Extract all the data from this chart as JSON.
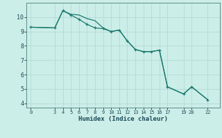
{
  "xlabel": "Humidex (Indice chaleur)",
  "background_color": "#cceee8",
  "grid_color": "#b8ddd8",
  "line_color": "#1a7a6e",
  "line1_x": [
    0,
    3,
    4,
    5,
    6,
    7,
    8,
    9,
    10,
    11,
    12,
    13,
    14,
    15,
    16,
    17,
    19,
    20,
    22
  ],
  "line1_y": [
    9.3,
    9.25,
    10.45,
    10.2,
    10.15,
    9.9,
    9.75,
    9.25,
    9.0,
    9.1,
    8.35,
    7.75,
    7.6,
    7.6,
    7.7,
    5.15,
    4.65,
    5.15,
    4.25
  ],
  "line2_x": [
    0,
    3,
    4,
    5,
    6,
    7,
    8,
    9,
    10,
    11,
    12,
    13,
    14,
    15,
    16,
    17,
    19,
    20,
    22
  ],
  "line2_y": [
    9.3,
    9.25,
    10.45,
    10.15,
    9.85,
    9.5,
    9.25,
    9.2,
    9.0,
    9.1,
    8.35,
    7.75,
    7.6,
    7.6,
    7.7,
    5.15,
    4.65,
    5.15,
    4.25
  ],
  "xticks": [
    0,
    3,
    4,
    5,
    6,
    7,
    8,
    9,
    10,
    11,
    12,
    13,
    14,
    15,
    16,
    17,
    19,
    20,
    22
  ],
  "yticks": [
    4,
    5,
    6,
    7,
    8,
    9,
    10
  ],
  "ylim": [
    3.7,
    11.0
  ],
  "xlim": [
    -0.5,
    23.5
  ]
}
